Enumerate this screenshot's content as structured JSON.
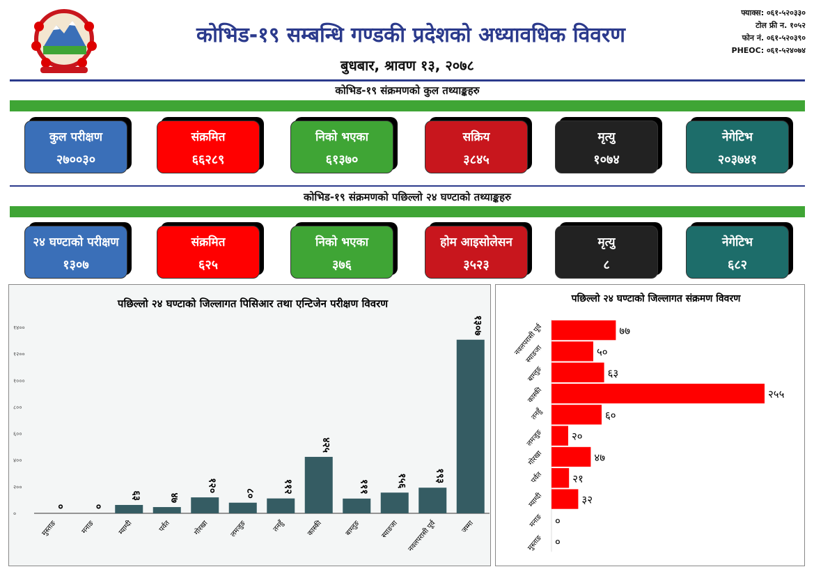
{
  "header": {
    "title": "कोभिड-१९ सम्बन्धि गण्डकी प्रदेशको अध्यावधिक विवरण",
    "date": "बुधबार, श्रावण १३, २०७८",
    "contacts": [
      "फ्याक्स: ०६१-५२०३३०",
      "टोल फ्री न. १०५२",
      "फोन नं. ०६१-५२०३९०",
      "PHEOC: ०६१-५२४०७४"
    ]
  },
  "section_total": "कोभिड-१९ संक्रमणको कुल तथ्याङ्कहरु",
  "section_24h": "कोभिड-१९ संक्रमणको पछिल्लो २४ घण्टाको तथ्याङ्कहरु",
  "total_cards": [
    {
      "label": "कुल परीक्षण",
      "value": "२७००३०",
      "color": "#3a6fb8"
    },
    {
      "label": "संक्रमित",
      "value": "६६२८९",
      "color": "#ff0000"
    },
    {
      "label": "निको भएका",
      "value": "६१३७०",
      "color": "#3fa535"
    },
    {
      "label": "सक्रिय",
      "value": "३८४५",
      "color": "#c8161d"
    },
    {
      "label": "मृत्यु",
      "value": "१०७४",
      "color": "#222222"
    },
    {
      "label": "नेगेटिभ",
      "value": "२०३७४१",
      "color": "#1d6d6a"
    }
  ],
  "day_cards": [
    {
      "label": "२४ घण्टाको परीक्षण",
      "value": "१३०७",
      "color": "#3a6fb8"
    },
    {
      "label": "संक्रमित",
      "value": "६२५",
      "color": "#ff0000"
    },
    {
      "label": "निको भएका",
      "value": "३७६",
      "color": "#3fa535"
    },
    {
      "label": "होम आइसोलेसन",
      "value": "३५२३",
      "color": "#c8161d"
    },
    {
      "label": "मृत्यु",
      "value": "८",
      "color": "#222222"
    },
    {
      "label": "नेगेटिभ",
      "value": "६८२",
      "color": "#1d6d6a"
    }
  ],
  "chart_data": [
    {
      "type": "bar",
      "title": "पछिल्लो २४ घण्टाको जिल्लागत पिसिआर तथा एन्टिजेन परीक्षण विवरण",
      "categories": [
        "मुस्ताङ",
        "मनाङ",
        "म्याग्दी",
        "पर्वत",
        "गोरखा",
        "लमजुङ",
        "तनहुँ",
        "कास्की",
        "बाग्लुङ",
        "स्याङजा",
        "नवलपरासी पूर्व",
        "जम्मा"
      ],
      "values": [
        0,
        0,
        63,
        47,
        120,
        80,
        112,
        425,
        111,
        156,
        193,
        1307
      ],
      "labels": [
        "०",
        "०",
        "६३",
        "४७",
        "१२०",
        "८०",
        "११२",
        "४२५",
        "१११",
        "१५६",
        "१९३",
        "१३०७"
      ],
      "ylim": [
        0,
        1400
      ],
      "yticks": [
        "०",
        "२००",
        "४००",
        "६००",
        "८००",
        "१०००",
        "१२००",
        "१४००"
      ],
      "color": "#355c63"
    },
    {
      "type": "bar",
      "orientation": "horizontal",
      "title": "पछिल्लो २४ घण्टाको जिल्लागत संक्रमण विवरण",
      "categories": [
        "नवलपरासी पूर्व",
        "स्याङजा",
        "बाग्लुङ",
        "कास्की",
        "तनहुँ",
        "लमजुङ",
        "गोरखा",
        "पर्वत",
        "म्याग्दी",
        "मनाङ",
        "मुस्ताङ"
      ],
      "values": [
        77,
        50,
        63,
        255,
        60,
        20,
        47,
        21,
        32,
        0,
        0
      ],
      "labels": [
        "७७",
        "५०",
        "६३",
        "२५५",
        "६०",
        "२०",
        "४७",
        "२१",
        "३२",
        "०",
        "०"
      ],
      "color": "#ff0000"
    }
  ]
}
